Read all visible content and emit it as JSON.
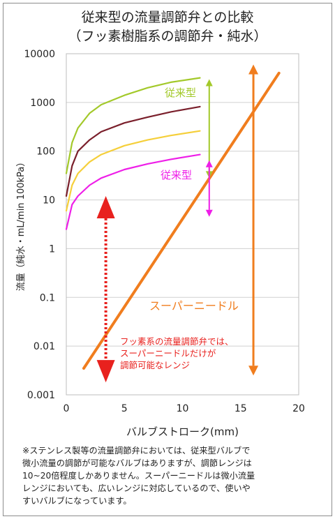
{
  "chart_data": {
    "type": "line",
    "title": "従来型の流量調節弁との比較",
    "subtitle": "（フッ素樹脂系の調節弁・純水）",
    "xlabel": "バルブストローク(mm)",
    "ylabel": "流量（純水・mL/min 100kPa）",
    "x_ticks": [
      "0",
      "5",
      "10",
      "15",
      "20"
    ],
    "y_ticks": [
      "0.001",
      "0.01",
      "0.1",
      "1",
      "10",
      "100",
      "1000",
      "10000"
    ],
    "xlim": [
      0,
      20
    ],
    "ylim": [
      0.001,
      10000
    ],
    "yscale": "log",
    "grid": "horizontal",
    "series": [
      {
        "color": "#a3c92a",
        "x": [
          0,
          0.5,
          1,
          2,
          3,
          5,
          7,
          9,
          11.5
        ],
        "y": [
          35,
          150,
          300,
          600,
          900,
          1400,
          2000,
          2600,
          3200
        ]
      },
      {
        "color": "#7a1f2b",
        "x": [
          0,
          0.5,
          1,
          2,
          3,
          5,
          7,
          9,
          11.5
        ],
        "y": [
          12,
          50,
          100,
          170,
          250,
          380,
          500,
          640,
          820
        ]
      },
      {
        "color": "#f5cf3a",
        "x": [
          0,
          0.5,
          1,
          2,
          3,
          5,
          7,
          9,
          11.5
        ],
        "y": [
          6,
          20,
          35,
          60,
          85,
          130,
          170,
          210,
          260
        ]
      },
      {
        "color": "#ee1ee8",
        "x": [
          0,
          0.5,
          1,
          2,
          3,
          5,
          7,
          9,
          11.5
        ],
        "y": [
          2.5,
          8,
          12,
          20,
          28,
          42,
          55,
          68,
          85
        ]
      },
      {
        "color": "#f07d1e",
        "x": [
          1.5,
          18.3
        ],
        "y": [
          0.0035,
          4000
        ]
      }
    ],
    "annotations": [
      {
        "text": "従来型",
        "color": "#a3c92a"
      },
      {
        "text": "従来型",
        "color": "#ee1ee8"
      },
      {
        "text": "スーパーニードル",
        "color": "#f07d1e"
      },
      {
        "lines": [
          "フッ素系の流量調節弁では、",
          "スーパーニードルだけが",
          "調節可能なレンジ"
        ],
        "color": "#e8211e"
      }
    ],
    "range_arrows": [
      {
        "color": "#a3c92a",
        "x": 12.3,
        "y": [
          3000,
          28
        ]
      },
      {
        "color": "#ee1ee8",
        "x": 12.3,
        "y": [
          65,
          4.5
        ]
      },
      {
        "color": "#f07d1e",
        "x": 16.1,
        "y": [
          6000,
          0.0025
        ]
      },
      {
        "color": "#e8211e",
        "x": 3.4,
        "y": [
          12,
          0.0018
        ],
        "style": "dotted"
      }
    ]
  },
  "note": {
    "lines": [
      "※ステンレス製等の流量調節弁においては、従来型バルブで",
      "微小流量の調節が可能なバルブはありますが、調節レンジは",
      "10~20倍程度しかありません。スーパーニードルは微小流量",
      "レンジにおいても、広いレンジに対応しているので、使いや",
      "すいバルブになっています。"
    ]
  }
}
